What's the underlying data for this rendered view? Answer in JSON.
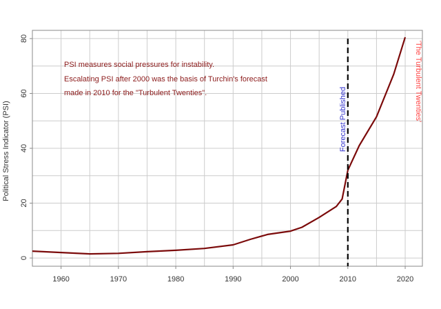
{
  "chart_data": {
    "type": "line",
    "title": "",
    "xlabel": "",
    "ylabel": "Political Stress Indicator (PSI)",
    "xlim": [
      1955,
      2023
    ],
    "ylim": [
      -3,
      83
    ],
    "x_ticks": [
      1960,
      1970,
      1980,
      1990,
      2000,
      2010,
      2020
    ],
    "y_ticks": [
      0,
      20,
      40,
      60,
      80
    ],
    "grid": true,
    "colors": {
      "line": "#7b0a0a",
      "grid": "#cccccc",
      "vline": "#000000",
      "note_text": "#8b1a1a",
      "forecast_text": "#3333cc",
      "twenties_text": "#ff4444"
    },
    "series": [
      {
        "x": [
          1955,
          1960,
          1965,
          1970,
          1975,
          1980,
          1985,
          1990,
          1993,
          1996,
          2000,
          2002,
          2005,
          2008,
          2009,
          2010,
          2012,
          2015,
          2018,
          2020
        ],
        "y": [
          2.5,
          2.0,
          1.5,
          1.7,
          2.3,
          2.8,
          3.5,
          4.8,
          6.8,
          8.6,
          9.8,
          11.2,
          14.8,
          18.8,
          21.5,
          32.0,
          41.0,
          51.5,
          67.0,
          80.5
        ]
      }
    ],
    "vline": {
      "x": 2010,
      "label": "Forecast Published"
    },
    "annotations": [
      "PSI measures social pressures for instability.",
      "Escalating PSI after 2000 was the basis of Turchin's forecast",
      "made in 2010 for the \"Turbulent Twenties\"."
    ],
    "side_label": "'The Turbulent Twenties'"
  }
}
